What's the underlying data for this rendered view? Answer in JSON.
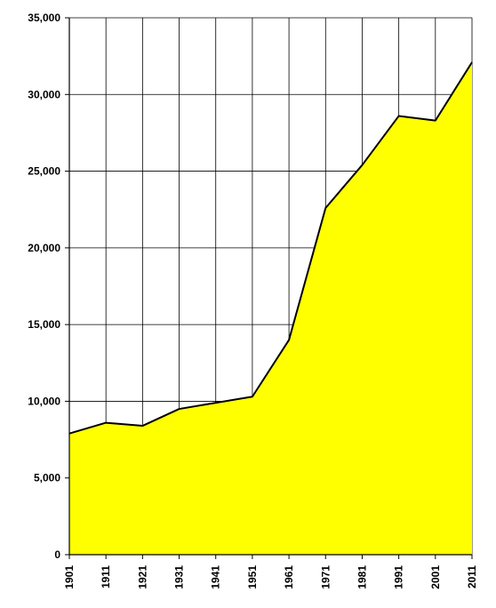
{
  "chart_data": {
    "type": "area",
    "title": "",
    "xlabel": "",
    "ylabel": "",
    "x": [
      "1901",
      "1911",
      "1921",
      "1931",
      "1941",
      "1951",
      "1961",
      "1971",
      "1981",
      "1991",
      "2001",
      "2011"
    ],
    "series": [
      {
        "values": [
          7900,
          8600,
          8400,
          9500,
          9900,
          10300,
          14000,
          22600,
          25400,
          28600,
          28300,
          32100
        ]
      }
    ],
    "ylim": [
      0,
      35000
    ],
    "y_ticks": [
      0,
      5000,
      10000,
      15000,
      20000,
      25000,
      30000,
      35000
    ],
    "y_tick_labels": [
      "0",
      "5,000",
      "10,000",
      "15,000",
      "20,000",
      "25,000",
      "30,000",
      "35,000"
    ],
    "grid": true,
    "legend": "none",
    "fill_color": "#ffff00",
    "line_color": "#000000",
    "grid_color": "#000000"
  }
}
